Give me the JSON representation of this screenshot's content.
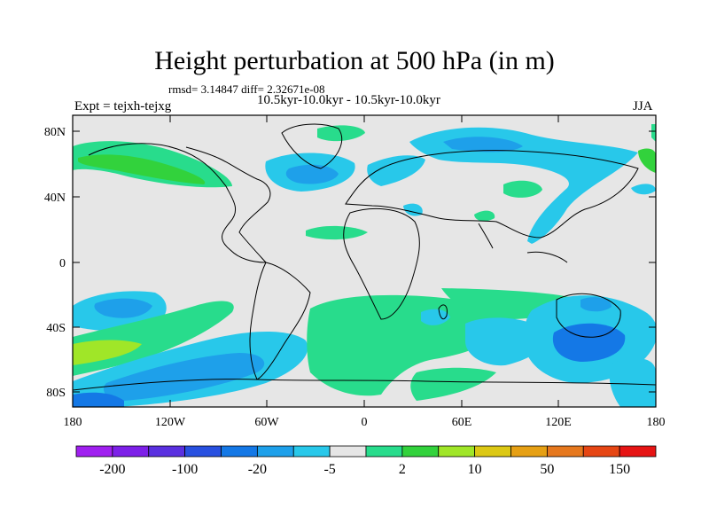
{
  "title": "Height perturbation at 500 hPa (in m)",
  "stats_text": "rmsd= 3.14847 diff= 2.32671e-08",
  "period_text": "10.5kyr-10.0kyr - 10.5kyr-10.0kyr",
  "experiment_text": "Expt = tejxh-tejxg",
  "season": "JJA",
  "map": {
    "lat_labels": [
      "80N",
      "40N",
      "0",
      "40S",
      "80S"
    ],
    "lon_labels": [
      "180",
      "120W",
      "60W",
      "0",
      "60E",
      "120E",
      "180"
    ]
  },
  "colorbar": {
    "colors": [
      "#a020f0",
      "#7d20e8",
      "#5a30e0",
      "#2850e0",
      "#1478e6",
      "#1ea0ea",
      "#28c8ea",
      "#e6e6e6",
      "#28dc8c",
      "#32d23c",
      "#a0e628",
      "#dcc814",
      "#e6a014",
      "#e6781e",
      "#e64614",
      "#e61414"
    ],
    "labels": [
      "-200",
      "-100",
      "-20",
      "-5",
      "2",
      "10",
      "50",
      "150"
    ]
  },
  "colors": {
    "background_zero": "#e6e6e6",
    "negative_light": "#28c8ea",
    "negative_medium": "#1ea0ea",
    "negative_strong": "#1478e6",
    "positive_light": "#28dc8c",
    "positive_medium": "#32d23c",
    "positive_strong": "#a0e628"
  }
}
